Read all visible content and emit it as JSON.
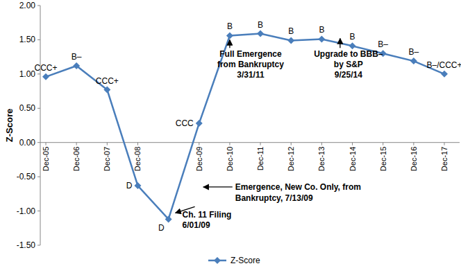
{
  "chart_data": {
    "type": "line",
    "y_label": "Z-Score",
    "categories": [
      "Dec-05",
      "Dec-06",
      "Dec-07",
      "Dec-08",
      null,
      "Dec-09",
      "Dec-10",
      "Dec-11",
      "Dec-12",
      "Dec-13",
      "Dec-14",
      "Dec-15",
      "Dec-16",
      "Dec-17"
    ],
    "series": [
      {
        "name": "Z-Score",
        "color": "#4a7ebb",
        "marker": "diamond",
        "values": [
          0.96,
          1.12,
          0.77,
          -0.63,
          -1.12,
          0.28,
          1.56,
          1.59,
          1.49,
          1.51,
          1.41,
          1.3,
          1.19,
          1.0
        ],
        "ratings": [
          "CCC+",
          "B–",
          "CCC+",
          "D",
          "D",
          "CCC",
          "B",
          "B",
          "B",
          "B",
          "B",
          "B–",
          "B–",
          "B–/CCC+"
        ]
      }
    ],
    "ylim": [
      -1.5,
      2
    ],
    "yticks": [
      {
        "value": -1.5,
        "label": "-1.50"
      },
      {
        "value": -1,
        "label": "-1.00"
      },
      {
        "value": -0.5,
        "label": "-0.50"
      },
      {
        "value": 0,
        "label": "0.00"
      },
      {
        "value": 0.5,
        "label": "0.50"
      },
      {
        "value": 1,
        "label": "1.00"
      },
      {
        "value": 1.5,
        "label": "1.50"
      },
      {
        "value": 2,
        "label": "2.00"
      }
    ],
    "grid": false,
    "legend": "bottom",
    "annotations": [
      {
        "lines": [
          "Full Emergence",
          "from Bankruptcy",
          "3/31/11"
        ]
      },
      {
        "lines": [
          "Upgrade to BBB–",
          "by S&P",
          "9/25/14"
        ]
      },
      {
        "lines": [
          "Ch. 11 Filing",
          "6/01/09"
        ]
      },
      {
        "lines": [
          "Emergence, New Co. Only, from",
          "Bankruptcy, 7/13/09"
        ]
      }
    ]
  }
}
